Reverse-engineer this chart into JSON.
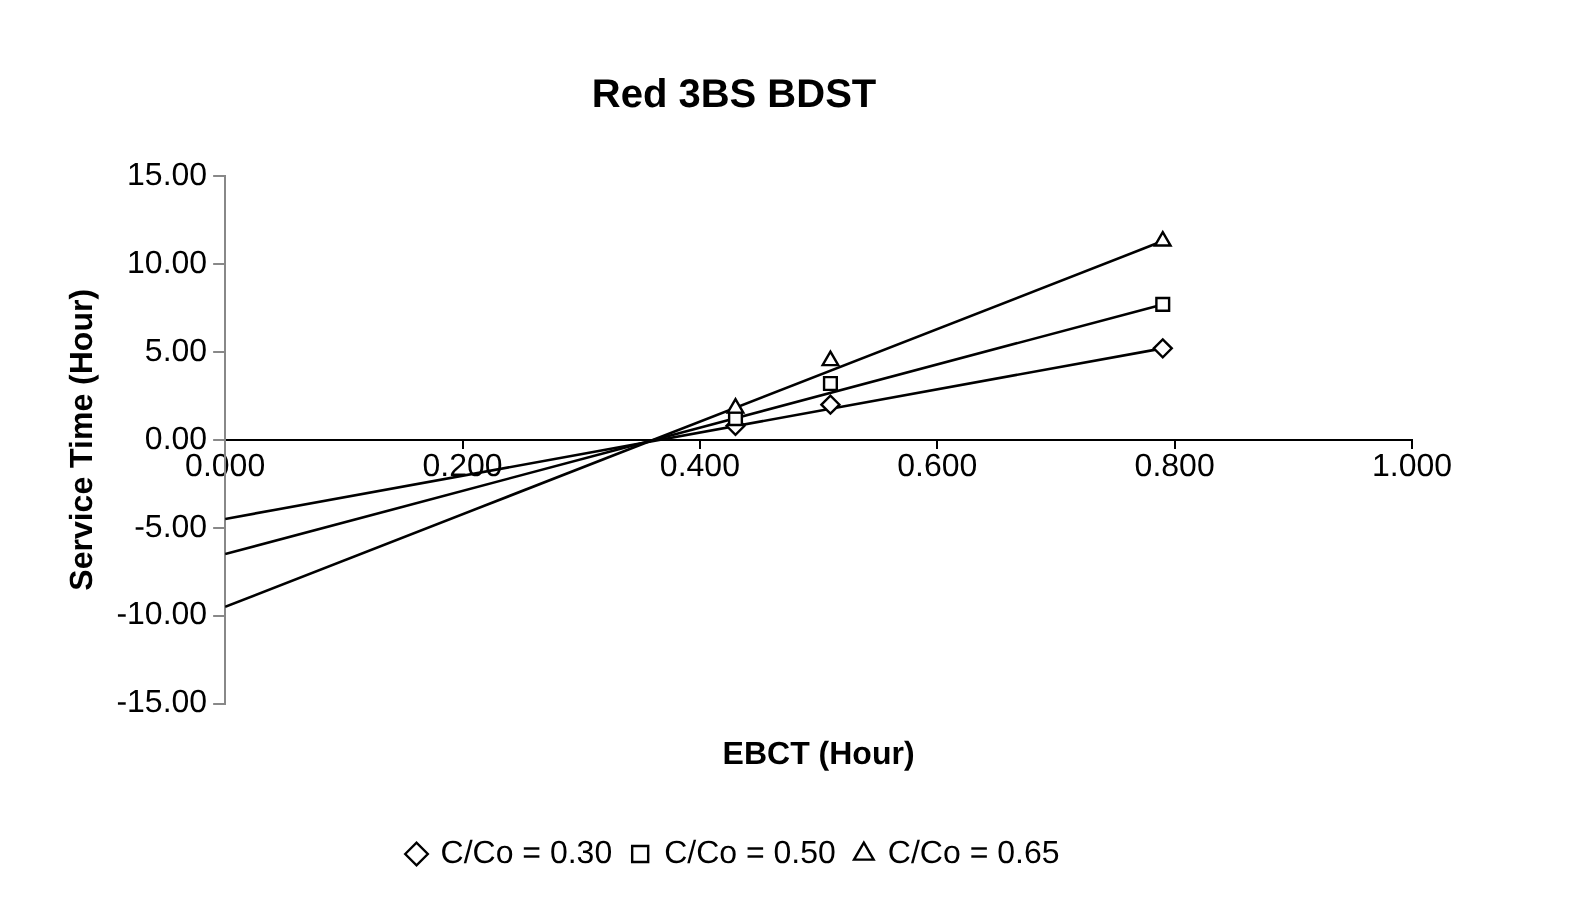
{
  "chart_data": {
    "type": "scatter",
    "title": "Red 3BS BDST",
    "xlabel": "EBCT (Hour)",
    "ylabel": "Service Time (Hour)",
    "xlim": [
      0,
      1
    ],
    "xticks": [
      {
        "value": 0,
        "label": "0.000"
      },
      {
        "value": 0.2,
        "label": "0.200"
      },
      {
        "value": 0.4,
        "label": "0.400"
      },
      {
        "value": 0.6,
        "label": "0.600"
      },
      {
        "value": 0.8,
        "label": "0.800"
      },
      {
        "value": 1,
        "label": "1.000"
      }
    ],
    "ylim": [
      -15,
      15
    ],
    "yticks": [
      {
        "value": -15,
        "label": "-15.00"
      },
      {
        "value": -10,
        "label": "-10.00"
      },
      {
        "value": -5,
        "label": "-5.00"
      },
      {
        "value": 0,
        "label": "0.00"
      },
      {
        "value": 5,
        "label": "5.00"
      },
      {
        "value": 10,
        "label": "10.00"
      },
      {
        "value": 15,
        "label": "15.00"
      }
    ],
    "grid": false,
    "legend": "bottom",
    "series": [
      {
        "name": "C/Co = 0.30",
        "type": "scatter",
        "marker": "diamond",
        "color": "#000000",
        "x": [
          0.43,
          0.51,
          0.79
        ],
        "values": [
          0.8,
          2.0,
          5.2
        ]
      },
      {
        "name": "C/Co = 0.50",
        "type": "scatter",
        "marker": "square",
        "color": "#000000",
        "x": [
          0.43,
          0.51,
          0.79
        ],
        "values": [
          1.2,
          3.2,
          7.7
        ]
      },
      {
        "name": "C/Co = 0.65",
        "type": "scatter",
        "marker": "triangle",
        "color": "#000000",
        "x": [
          0.43,
          0.51,
          0.79
        ],
        "values": [
          1.8,
          4.5,
          11.3
        ]
      },
      {
        "type": "line",
        "marker": "none",
        "color": "#000000",
        "x": [
          0,
          0.79
        ],
        "values": [
          -4.5,
          5.2
        ]
      },
      {
        "type": "line",
        "marker": "none",
        "color": "#000000",
        "x": [
          0,
          0.79
        ],
        "values": [
          -6.5,
          7.7
        ]
      },
      {
        "type": "line",
        "marker": "none",
        "color": "#000000",
        "x": [
          0,
          0.79
        ],
        "values": [
          -9.5,
          11.3
        ]
      }
    ]
  }
}
